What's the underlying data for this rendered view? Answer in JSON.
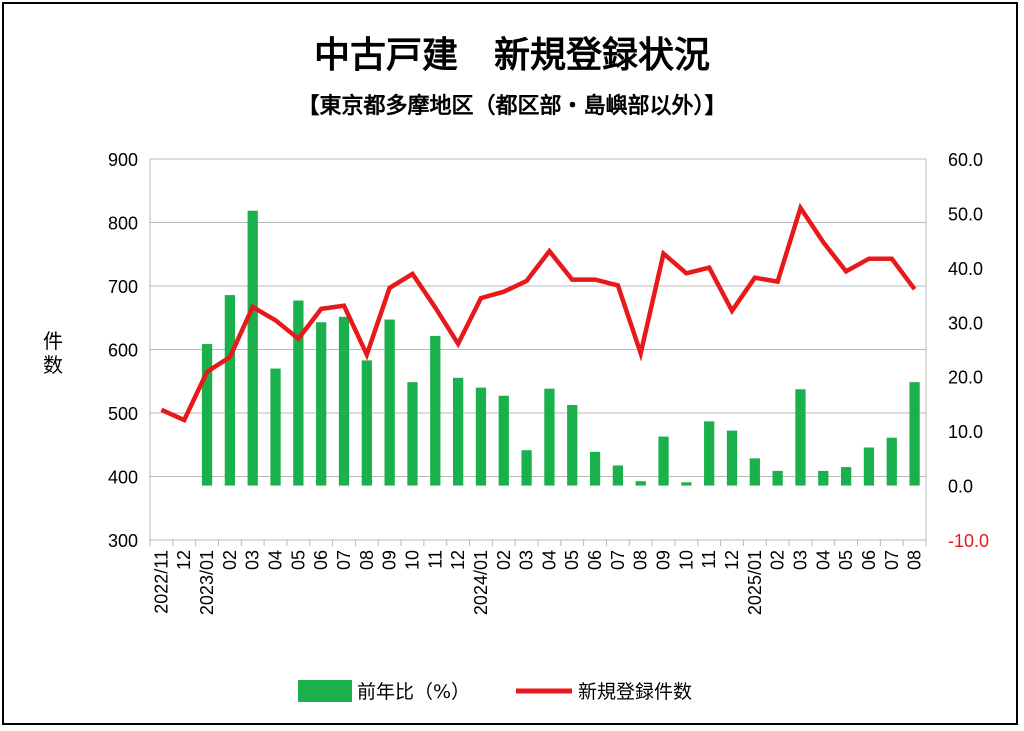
{
  "title": "中古戸建　新規登録状況",
  "subtitle": "【東京都多摩地区（都区部・島嶼部以外）】",
  "chart_data": {
    "type": "bar+line",
    "categories": [
      "2022/11",
      "12",
      "2023/01",
      "02",
      "03",
      "04",
      "05",
      "06",
      "07",
      "08",
      "09",
      "10",
      "11",
      "12",
      "2024/01",
      "02",
      "03",
      "04",
      "05",
      "06",
      "07",
      "08",
      "09",
      "10",
      "11",
      "12",
      "2025/01",
      "02",
      "03",
      "04",
      "05",
      "06",
      "07",
      "08"
    ],
    "left_axis": {
      "label": "件数",
      "ylim": [
        300,
        900
      ],
      "ticks": [
        "900",
        "800",
        "700",
        "600",
        "500",
        "400",
        "300"
      ]
    },
    "right_axis": {
      "ylim": [
        -10,
        60
      ],
      "ticks": [
        "60.0",
        "50.0",
        "40.0",
        "30.0",
        "20.0",
        "10.0",
        "0.0",
        "-10.0"
      ],
      "negative_color": "#e8191a"
    },
    "series": [
      {
        "name": "前年比（%）",
        "kind": "bar",
        "axis": "right",
        "color": "#1ab04c",
        "values": [
          null,
          null,
          26.0,
          35.0,
          50.5,
          21.5,
          34.0,
          30.0,
          31.0,
          23.0,
          30.5,
          19.0,
          27.5,
          19.8,
          18.0,
          16.5,
          6.5,
          17.8,
          14.8,
          6.2,
          3.7,
          0.8,
          9.0,
          0.6,
          11.8,
          10.1,
          5.0,
          2.7,
          17.7,
          2.7,
          3.4,
          7.0,
          8.8,
          19.0
        ]
      },
      {
        "name": "新規登録件数",
        "kind": "line",
        "axis": "left",
        "color": "#e8191a",
        "values": [
          505,
          489,
          565,
          588,
          667,
          646,
          617,
          664,
          669,
          592,
          697,
          719,
          666,
          609,
          681,
          691,
          708,
          755,
          710,
          710,
          701,
          594,
          751,
          720,
          729,
          661,
          713,
          707,
          823,
          769,
          723,
          743,
          743,
          695
        ]
      }
    ],
    "legend": {
      "placement": "bottom-center",
      "items": [
        "前年比（%）",
        "新規登録件数"
      ]
    },
    "grid": true
  }
}
